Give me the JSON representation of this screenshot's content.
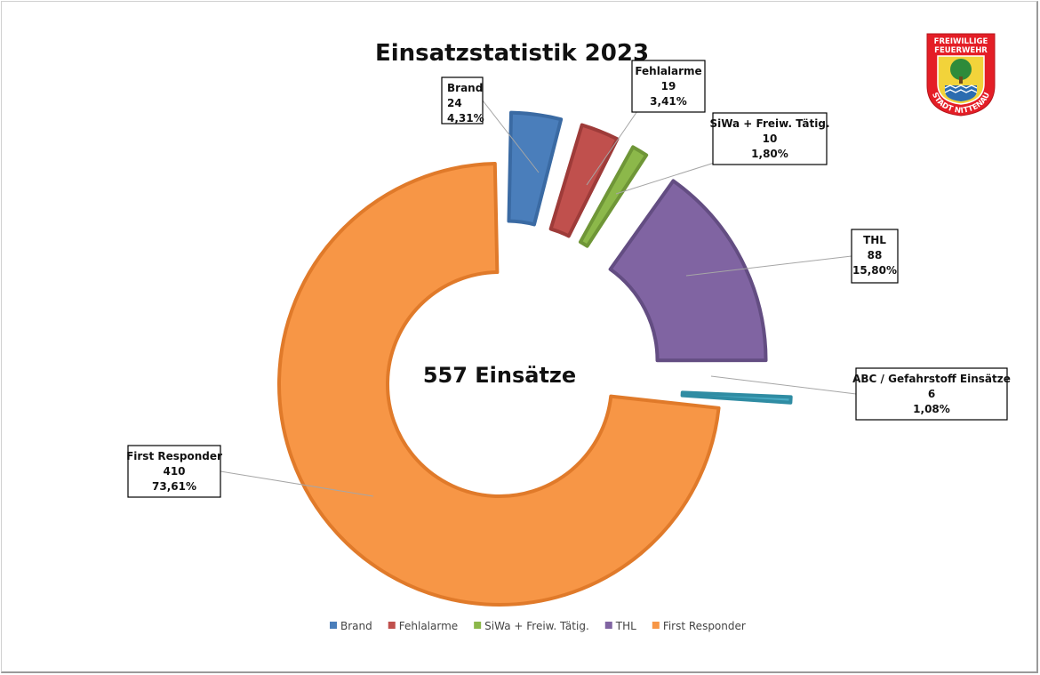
{
  "chart_data": {
    "type": "pie",
    "variant": "exploded donut",
    "title": "Einsatzstatistik 2023",
    "center_label": "557 Einsätze",
    "slices": [
      {
        "name": "Brand",
        "value": 24,
        "percent_label": "4,31%",
        "color": "#4a7ebb",
        "border": "#3a6aa3",
        "explode": 58,
        "label_line1": "Brand",
        "label_line2": "24",
        "in_legend": true
      },
      {
        "name": "Fehlalarme",
        "value": 19,
        "percent_label": "3,41%",
        "color": "#c0504d",
        "border": "#9e3b39",
        "explode": 58,
        "label_line1": "Fehlalarme",
        "label_line2": "19",
        "in_legend": true
      },
      {
        "name": "SiWa + Freiw. Tätig.",
        "value": 10,
        "percent_label": "1,80%",
        "color": "#8cb84a",
        "border": "#6f9637",
        "explode": 58,
        "label_line1": "SiWa + Freiw. Tätig.",
        "label_line2": "10",
        "in_legend": true
      },
      {
        "name": "THL",
        "value": 88,
        "percent_label": "15,80%",
        "color": "#8064a2",
        "border": "#634d82",
        "explode": 58,
        "label_line1": "THL",
        "label_line2": "88",
        "in_legend": true
      },
      {
        "name": "ABC / Gefahrstoff Einsätze",
        "value": 6,
        "percent_label": "1,08%",
        "color": "#4aacc5",
        "border": "#2f8ca3",
        "explode": 80,
        "label_line1": "ABC / Gefahrstoff Einsätze",
        "label_line2": "6",
        "in_legend": false
      },
      {
        "name": "First Responder",
        "value": 410,
        "percent_label": "73,61%",
        "color": "#f79646",
        "border": "#e07a2a",
        "explode": 0,
        "label_line1": "First Responder",
        "label_line2": "410",
        "in_legend": true
      }
    ],
    "legend_position": "bottom"
  },
  "logo": {
    "line1": "FREIWILLIGE",
    "line2": "FEUERWEHR",
    "ring_text": "STADT NITTENAU",
    "colors": {
      "red": "#e41e26",
      "blue": "#2b6cb0",
      "green": "#2e8b3a",
      "yellow": "#f2d33a"
    }
  }
}
